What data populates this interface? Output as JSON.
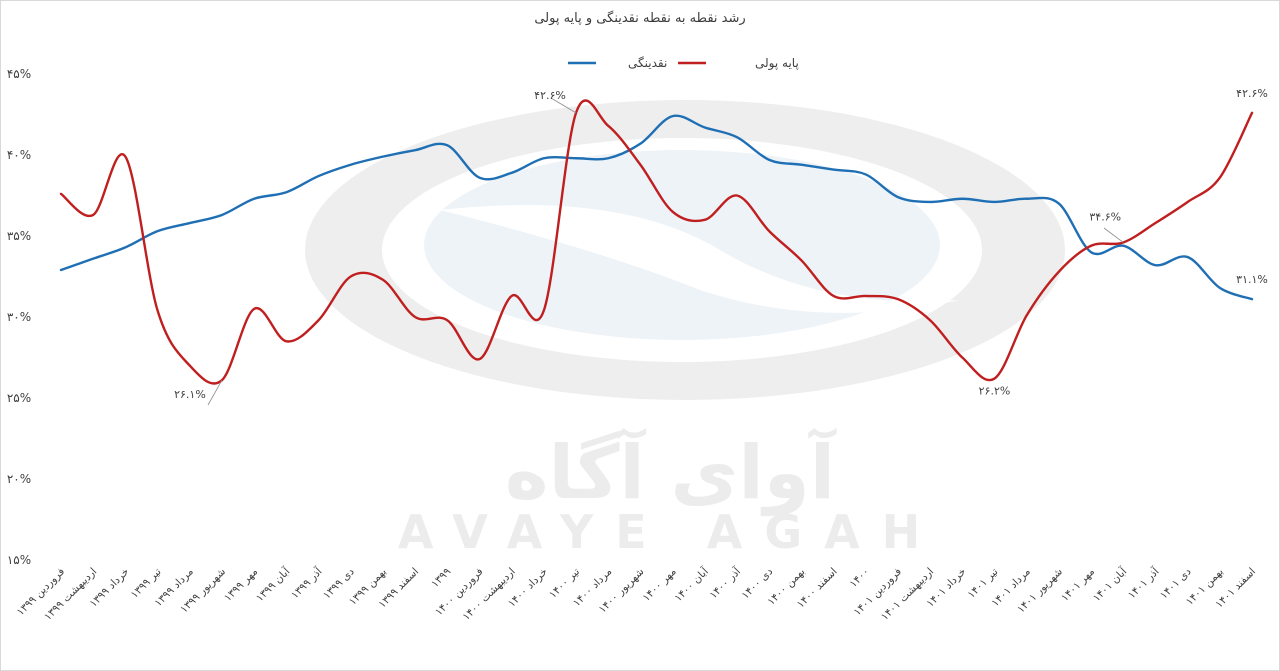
{
  "chart_data": {
    "type": "line",
    "title": "رشد نقطه به نقطه نقدینگی و پایه پولی",
    "watermark": {
      "brand_fa": "آوای آگاه",
      "brand_en": "AVAYE AGAH"
    },
    "ylim": [
      15,
      45
    ],
    "yticks": [
      "۱۵%",
      "۲۰%",
      "۲۵%",
      "۳۰%",
      "۳۵%",
      "۴۰%",
      "۴۵%"
    ],
    "grid": false,
    "legend_position": "top-center",
    "categories": [
      "فروردین ۱۳۹۹",
      "اردیبهشت ۱۳۹۹",
      "خرداد ۱۳۹۹",
      "تیر ۱۳۹۹",
      "مرداد ۱۳۹۹",
      "شهریور ۱۳۹۹",
      "مهر ۱۳۹۹",
      "آبان ۱۳۹۹",
      "آذر ۱۳۹۹",
      "دی ۱۳۹۹",
      "بهمن ۱۳۹۹",
      "اسفند ۱۳۹۹",
      "۱۳۹۹",
      "فروردین ۱۴۰۰",
      "اردیبهشت ۱۴۰۰",
      "خرداد ۱۴۰۰",
      "تیر ۱۴۰۰",
      "مرداد ۱۴۰۰",
      "شهریور ۱۴۰۰",
      "مهر ۱۴۰۰",
      "آبان ۱۴۰۰",
      "آذر ۱۴۰۰",
      "دی ۱۴۰۰",
      "بهمن ۱۴۰۰",
      "اسفند ۱۴۰۰",
      "۱۴۰۰",
      "فروردین ۱۴۰۱",
      "اردیبهشت ۱۴۰۱",
      "خرداد ۱۴۰۱",
      "تیر ۱۴۰۱",
      "مرداد ۱۴۰۱",
      "شهریور ۱۴۰۱",
      "مهر ۱۴۰۱",
      "آبان ۱۴۰۱",
      "آذر ۱۴۰۱",
      "دی ۱۴۰۱",
      "بهمن ۱۴۰۱",
      "اسفند ۱۴۰۱"
    ],
    "series": [
      {
        "name": "نقدینگی",
        "color": "#1f6fb5",
        "values": [
          32.9,
          33.6,
          34.3,
          35.3,
          35.8,
          36.3,
          37.3,
          37.7,
          38.7,
          39.4,
          39.9,
          40.3,
          40.6,
          38.6,
          38.9,
          39.8,
          39.8,
          39.8,
          40.7,
          42.4,
          41.7,
          41.1,
          39.7,
          39.4,
          39.1,
          38.8,
          37.4,
          37.1,
          37.3,
          37.1,
          37.3,
          37.0,
          34.0,
          34.4,
          33.2,
          33.7,
          31.8,
          31.1
        ]
      },
      {
        "name": "پایه پولی",
        "color": "#c01f1f",
        "values": [
          37.6,
          36.3,
          39.9,
          30.4,
          27.0,
          26.1,
          30.5,
          28.5,
          29.8,
          32.5,
          32.3,
          30.0,
          29.8,
          27.4,
          31.3,
          30.4,
          42.6,
          41.8,
          39.4,
          36.5,
          36.0,
          37.5,
          35.3,
          33.5,
          31.3,
          31.3,
          31.1,
          29.8,
          27.5,
          26.2,
          30.1,
          32.8,
          34.4,
          34.6,
          35.8,
          37.1,
          38.6,
          42.6
        ]
      }
    ],
    "annotations": [
      {
        "series": "پایه پولی",
        "category": "شهریور ۱۳۹۹",
        "text": "۲۶.۱%"
      },
      {
        "series": "پایه پولی",
        "category": "تیر ۱۴۰۰",
        "text": "۴۲.۶%"
      },
      {
        "series": "پایه پولی",
        "category": "تیر ۱۴۰۱",
        "text": "۲۶.۲%"
      },
      {
        "series": "پایه پولی",
        "category": "آبان ۱۴۰۱",
        "text": "۳۴.۶%"
      },
      {
        "series": "پایه پولی",
        "category": "اسفند ۱۴۰۱",
        "text": "۴۲.۶%"
      },
      {
        "series": "نقدینگی",
        "category": "اسفند ۱۴۰۱",
        "text": "۳۱.۱%"
      }
    ]
  }
}
